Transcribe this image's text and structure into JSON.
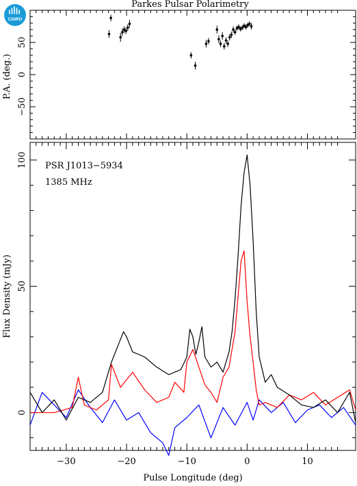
{
  "figure": {
    "title": "Parkes Pulsar Polarimetry",
    "logo_text": "CSIRO",
    "colors": {
      "total_intensity": "#000000",
      "linear_polarization": "#ff0000",
      "circular_polarization": "#0000ff",
      "logo": "#1a9bd7"
    }
  },
  "chart_data": [
    {
      "panel": "position-angle",
      "type": "scatter",
      "ylabel": "P.A. (deg.)",
      "xlim": [
        -36,
        18
      ],
      "ylim": [
        -100,
        100
      ],
      "yticks": [
        -50,
        0,
        50
      ],
      "ytick_labels": [
        "−50",
        "0",
        "50"
      ],
      "points": [
        {
          "x": -22.9,
          "y": 63,
          "err": 6
        },
        {
          "x": -22.6,
          "y": 88,
          "err": 5
        },
        {
          "x": -21.0,
          "y": 58,
          "err": 7
        },
        {
          "x": -20.7,
          "y": 66,
          "err": 6
        },
        {
          "x": -20.4,
          "y": 70,
          "err": 5
        },
        {
          "x": -20.1,
          "y": 68,
          "err": 5
        },
        {
          "x": -19.8,
          "y": 73,
          "err": 5
        },
        {
          "x": -19.5,
          "y": 79,
          "err": 6
        },
        {
          "x": -9.3,
          "y": 30,
          "err": 5
        },
        {
          "x": -8.6,
          "y": 14,
          "err": 6
        },
        {
          "x": -6.8,
          "y": 48,
          "err": 6
        },
        {
          "x": -6.4,
          "y": 52,
          "err": 5
        },
        {
          "x": -5.0,
          "y": 70,
          "err": 6
        },
        {
          "x": -4.7,
          "y": 55,
          "err": 6
        },
        {
          "x": -4.4,
          "y": 48,
          "err": 5
        },
        {
          "x": -4.1,
          "y": 60,
          "err": 6
        },
        {
          "x": -3.8,
          "y": 44,
          "err": 5
        },
        {
          "x": -3.5,
          "y": 53,
          "err": 5
        },
        {
          "x": -3.2,
          "y": 48,
          "err": 5
        },
        {
          "x": -2.9,
          "y": 58,
          "err": 5
        },
        {
          "x": -2.6,
          "y": 62,
          "err": 5
        },
        {
          "x": -2.3,
          "y": 70,
          "err": 5
        },
        {
          "x": -2.0,
          "y": 66,
          "err": 4
        },
        {
          "x": -1.7,
          "y": 72,
          "err": 4
        },
        {
          "x": -1.4,
          "y": 74,
          "err": 4
        },
        {
          "x": -1.1,
          "y": 71,
          "err": 4
        },
        {
          "x": -0.8,
          "y": 73,
          "err": 4
        },
        {
          "x": -0.5,
          "y": 76,
          "err": 4
        },
        {
          "x": -0.2,
          "y": 74,
          "err": 4
        },
        {
          "x": 0.1,
          "y": 77,
          "err": 4
        },
        {
          "x": 0.4,
          "y": 79,
          "err": 4
        },
        {
          "x": 0.7,
          "y": 75,
          "err": 5
        }
      ]
    },
    {
      "panel": "flux-profile",
      "type": "line",
      "xlabel": "Pulse Longitude (deg)",
      "ylabel": "Flux Density (mJy)",
      "xlim": [
        -36,
        18
      ],
      "ylim": [
        -15,
        107
      ],
      "xticks": [
        -30,
        -20,
        -10,
        0,
        10
      ],
      "xtick_labels": [
        "−30",
        "−20",
        "−10",
        "0",
        "10"
      ],
      "yticks": [
        0,
        50,
        100
      ],
      "ytick_labels": [
        "0",
        "50",
        "100"
      ],
      "annotations": [
        "PSR J1013−5934",
        "1385 MHz"
      ],
      "series": [
        {
          "key": "total-intensity",
          "color": "#000000",
          "x": [
            -36,
            -34,
            -32,
            -30,
            -28,
            -26,
            -24,
            -22.5,
            -21.5,
            -20.5,
            -20,
            -19,
            -17,
            -15,
            -13,
            -11,
            -10,
            -9.5,
            -9,
            -8.5,
            -8,
            -7.5,
            -7,
            -6,
            -5,
            -4,
            -3,
            -2.5,
            -2,
            -1.5,
            -1,
            -0.5,
            0,
            0.5,
            1,
            1.5,
            2,
            3,
            4,
            5,
            7,
            9,
            11,
            13,
            15,
            17,
            18
          ],
          "y": [
            8,
            0,
            5,
            -3,
            6,
            4,
            8,
            20,
            26,
            32,
            30,
            24,
            22,
            18,
            15,
            17,
            22,
            33,
            30,
            23,
            28,
            34,
            22,
            18,
            20,
            16,
            24,
            32,
            45,
            62,
            82,
            95,
            102,
            90,
            68,
            40,
            22,
            12,
            15,
            10,
            7,
            3,
            2,
            5,
            0,
            8,
            -4
          ]
        },
        {
          "key": "linear-polarization",
          "color": "#ff0000",
          "x": [
            -36,
            -32,
            -29,
            -28,
            -27,
            -25,
            -23,
            -22.5,
            -21,
            -19,
            -17,
            -15,
            -13,
            -12,
            -10.5,
            -10,
            -9,
            -8,
            -7,
            -6,
            -5,
            -4,
            -3,
            -2,
            -1.5,
            -1,
            -0.5,
            0,
            0.5,
            1,
            1.5,
            2,
            3,
            5,
            7,
            9,
            11,
            13,
            15,
            17,
            18
          ],
          "y": [
            0,
            0,
            2,
            14,
            3,
            1,
            5,
            19,
            10,
            16,
            9,
            4,
            6,
            12,
            8,
            20,
            25,
            18,
            11,
            8,
            4,
            14,
            18,
            32,
            46,
            60,
            64,
            44,
            30,
            20,
            9,
            3,
            4,
            2,
            7,
            5,
            8,
            3,
            6,
            9,
            1
          ]
        },
        {
          "key": "circular-polarization",
          "color": "#0000ff",
          "x": [
            -36,
            -34,
            -32,
            -30,
            -28,
            -26,
            -24,
            -22,
            -20,
            -18,
            -16,
            -14,
            -13,
            -12,
            -10,
            -8,
            -6,
            -4,
            -2,
            0,
            1,
            2,
            4,
            6,
            8,
            10,
            12,
            14,
            16,
            18
          ],
          "y": [
            -5,
            8,
            3,
            -2,
            9,
            2,
            -4,
            5,
            -3,
            0,
            -8,
            -12,
            -17,
            -6,
            -2,
            3,
            -10,
            2,
            -5,
            4,
            -3,
            5,
            0,
            4,
            -4,
            1,
            3,
            -2,
            2,
            -5
          ]
        }
      ]
    }
  ]
}
